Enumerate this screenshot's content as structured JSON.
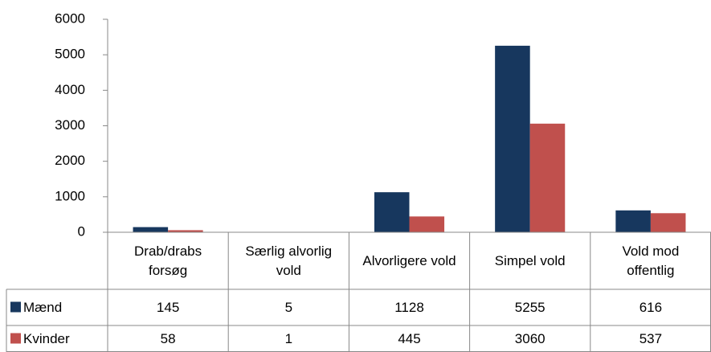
{
  "chart_data": {
    "type": "bar",
    "categories": [
      "Drab/drabs forsøg",
      "Særlig alvorlig vold",
      "Alvorligere vold",
      "Simpel vold",
      "Vold mod offentlig"
    ],
    "series": [
      {
        "name": "Mænd",
        "color": "#17375e",
        "values": [
          145,
          5,
          1128,
          5255,
          616
        ]
      },
      {
        "name": "Kvinder",
        "color": "#c0504d",
        "values": [
          58,
          1,
          445,
          3060,
          537
        ]
      }
    ],
    "ylim": [
      0,
      6000
    ],
    "yticks": [
      0,
      1000,
      2000,
      3000,
      4000,
      5000,
      6000
    ],
    "grid": false,
    "data_table": true
  }
}
